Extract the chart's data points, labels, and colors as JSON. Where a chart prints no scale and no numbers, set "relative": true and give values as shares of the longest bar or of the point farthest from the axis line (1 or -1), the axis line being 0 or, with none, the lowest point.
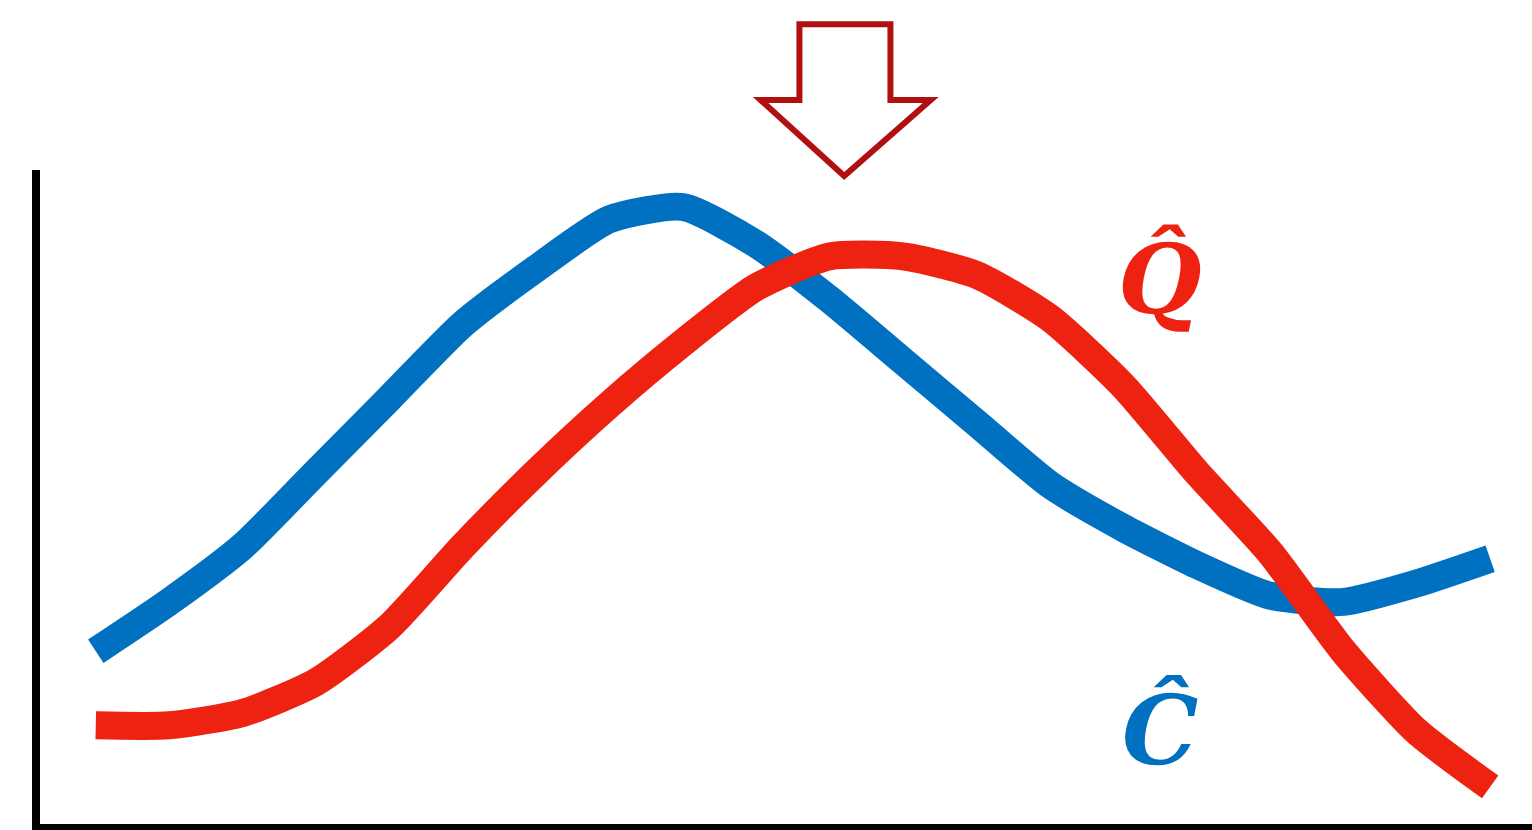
{
  "chart_data": {
    "type": "line",
    "relative": true,
    "tick_labels": false,
    "legend": false,
    "categories": [
      null,
      null,
      null,
      null,
      null,
      null,
      null,
      null,
      null,
      null,
      null,
      null,
      null,
      null,
      null,
      null,
      null,
      null,
      null,
      null
    ],
    "series": [
      {
        "name": "Ĉ",
        "color": "#0070c0",
        "values": [
          0.28,
          0.36,
          0.45,
          0.57,
          0.69,
          0.81,
          0.9,
          0.98,
          1.0,
          0.94,
          0.85,
          0.75,
          0.65,
          0.55,
          0.48,
          0.42,
          0.37,
          0.36,
          0.39,
          0.43
        ]
      },
      {
        "name": "Q̂",
        "color": "#ee2211",
        "values": [
          0.16,
          0.16,
          0.18,
          0.23,
          0.32,
          0.45,
          0.57,
          0.68,
          0.78,
          0.87,
          0.92,
          0.92,
          0.89,
          0.82,
          0.71,
          0.57,
          0.44,
          0.28,
          0.15,
          0.06
        ]
      }
    ]
  }
}
